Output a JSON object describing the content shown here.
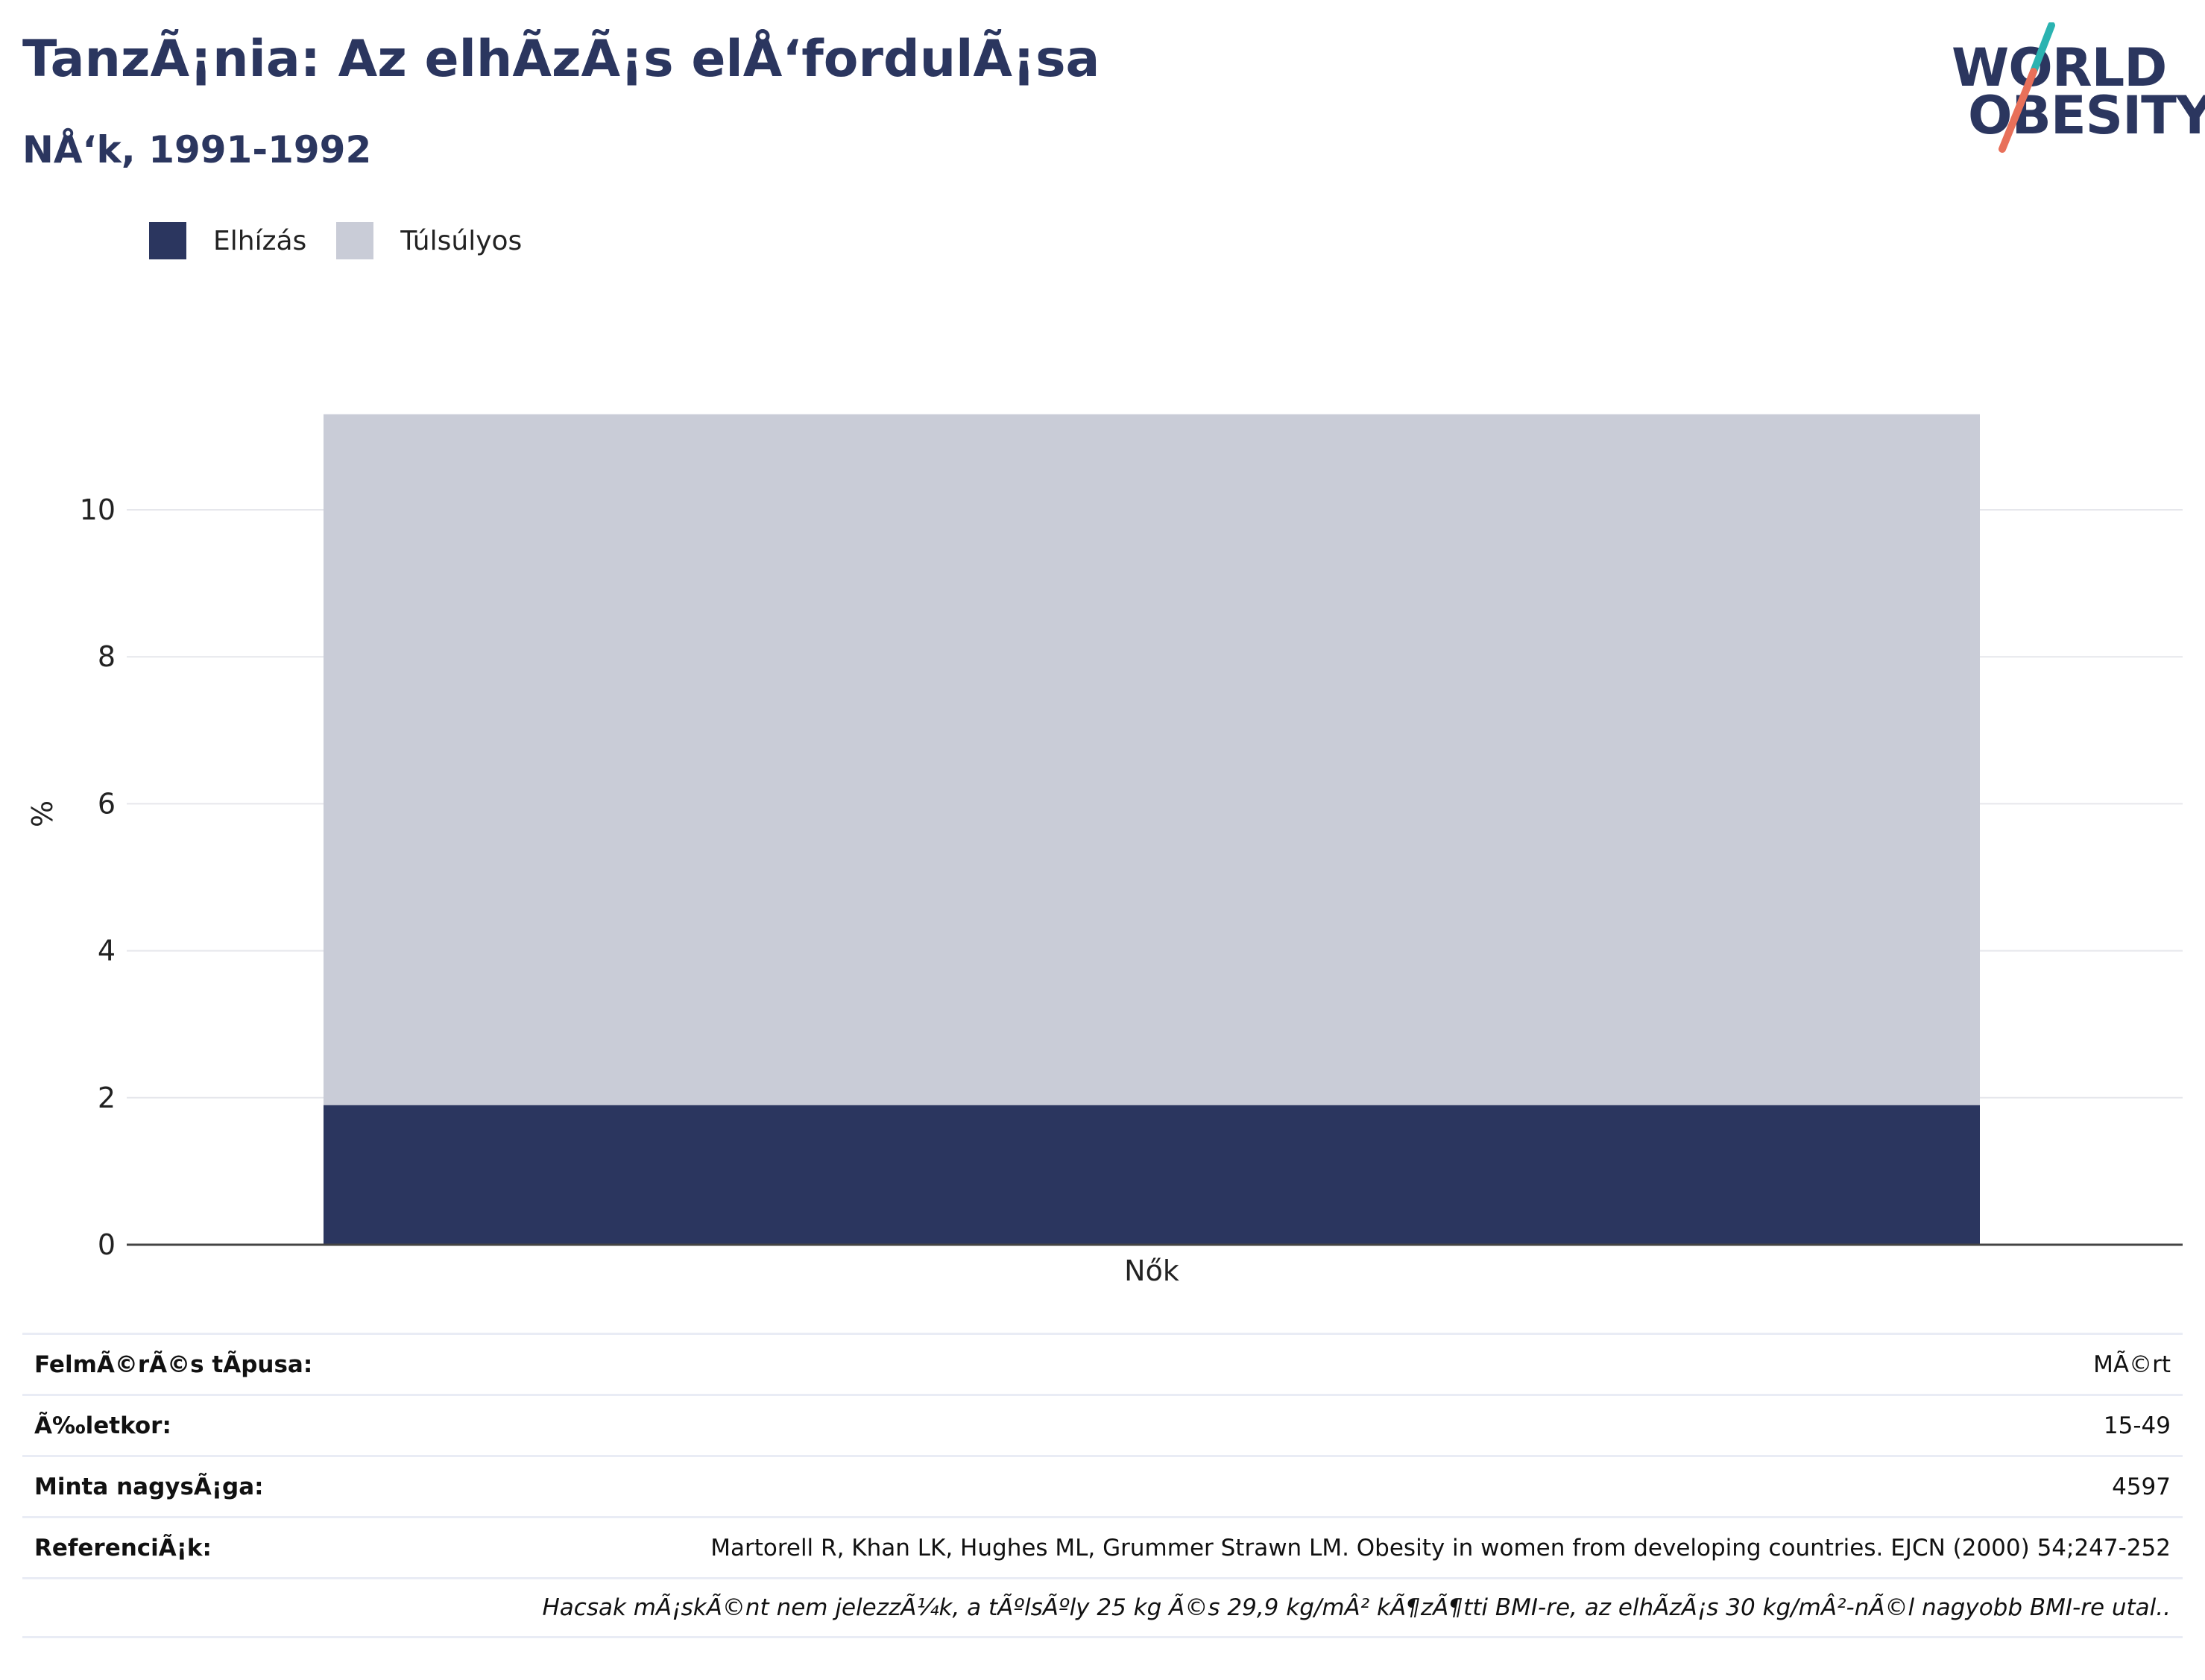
{
  "header": {
    "title": "TanzÃ¡nia: Az elhÃzÃ¡s elÅ‘fordulÃ¡sa",
    "subtitle": "NÅ‘k, 1991-1992"
  },
  "logo": {
    "line1": "WORLD",
    "line2": "OBESITY",
    "accent_colors": [
      "#2bb3b1",
      "#e8705a"
    ]
  },
  "legend": [
    {
      "label": "Elhízás",
      "color": "#2b365f"
    },
    {
      "label": "Túlsúlyos",
      "color": "#c9ccd7"
    }
  ],
  "chart_data": {
    "type": "bar",
    "stacked": true,
    "categories": [
      "Nők"
    ],
    "series": [
      {
        "name": "Elhízás",
        "values": [
          1.9
        ],
        "color": "#2b365f"
      },
      {
        "name": "Túlsúlyos",
        "values": [
          9.4
        ],
        "color": "#c9ccd7"
      }
    ],
    "ylabel": "%",
    "xlabel": "",
    "ylim": [
      0,
      11.3
    ],
    "yticks": [
      0,
      2,
      4,
      6,
      8,
      10
    ],
    "grid": true,
    "legend_position": "top-left"
  },
  "info": {
    "rows": [
      {
        "key": "FelmÃ©rÃ©s tÃpusa:",
        "value": "MÃ©rt"
      },
      {
        "key": "Ã‰letkor:",
        "value": "15-49"
      },
      {
        "key": "Minta nagysÃ¡ga:",
        "value": "4597"
      },
      {
        "key": "ReferenciÃ¡k:",
        "value": "Martorell R, Khan LK, Hughes ML, Grummer Strawn LM. Obesity in women from developing countries. EJCN (2000) 54;247-252"
      }
    ],
    "note": "Hacsak mÃ¡skÃ©nt nem jelezzÃ¼k, a tÃºlsÃºly 25 kg Ã©s 29,9 kg/mÂ² kÃ¶zÃ¶tti BMI-re, az elhÃzÃ¡s 30 kg/mÂ²-nÃ©l nagyobb BMI-re utal.."
  }
}
